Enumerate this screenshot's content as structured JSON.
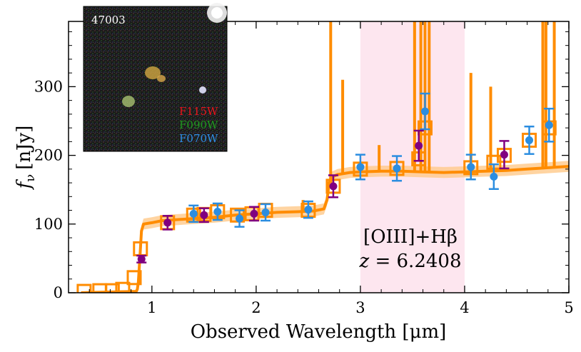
{
  "chart_data": {
    "type": "scatter",
    "xlabel": "Observed Wavelength [μm]",
    "ylabel_symbol": "f",
    "ylabel_subscript": "ν",
    "ylabel_unit": "[nJy]",
    "xlim": [
      0.2,
      5.0
    ],
    "ylim": [
      0,
      395
    ],
    "xticks": [
      1,
      2,
      3,
      4,
      5
    ],
    "yticks": [
      0,
      100,
      200,
      300
    ],
    "xticks_minor": [
      0.2,
      0.4,
      0.6,
      0.8,
      1.2,
      1.4,
      1.6,
      1.8,
      2.2,
      2.4,
      2.6,
      2.8,
      3.2,
      3.4,
      3.6,
      3.8,
      4.2,
      4.4,
      4.6,
      4.8
    ],
    "yticks_minor": [
      20,
      40,
      60,
      80,
      120,
      140,
      160,
      180,
      220,
      240,
      260,
      280,
      320,
      340,
      360,
      380
    ],
    "grid": false,
    "shaded_region": {
      "x": [
        3.0,
        4.0
      ],
      "color": "#fde6ef"
    },
    "annotation": {
      "line1": "[OIII]+Hβ",
      "line2_var": "z",
      "line2_eq": " = 6.2408"
    },
    "inset": {
      "id_label": "47003",
      "filters": [
        {
          "name": "F115W",
          "color": "#e8141c"
        },
        {
          "name": "F090W",
          "color": "#1f9a1f"
        },
        {
          "name": "F070W",
          "color": "#2f8fe8"
        }
      ]
    },
    "colors": {
      "model": "#ff8c00",
      "model_band": "#ffc98a",
      "blue_points": "#2b8de0",
      "purple_points": "#800080"
    },
    "model_spectrum": {
      "x": [
        0.32,
        0.85,
        0.86,
        0.87,
        0.88,
        0.89,
        0.9,
        0.92,
        1.0,
        1.1,
        1.2,
        1.4,
        1.6,
        1.8,
        2.0,
        2.2,
        2.4,
        2.55,
        2.65,
        2.68,
        2.7,
        2.72,
        2.78,
        2.9,
        3.0,
        3.2,
        3.4,
        3.6,
        3.8,
        4.0,
        4.2,
        4.4,
        4.6,
        4.8,
        5.0
      ],
      "y": [
        0,
        2,
        5,
        15,
        40,
        65,
        90,
        100,
        102,
        105,
        106,
        108,
        110,
        113,
        115,
        117,
        118,
        119,
        122,
        135,
        160,
        168,
        172,
        175,
        176,
        177,
        177,
        176,
        175,
        176,
        177,
        178,
        180,
        182,
        184
      ]
    },
    "emission_lines": [
      {
        "x": 2.715,
        "y": 395
      },
      {
        "x": 2.83,
        "y": 310
      },
      {
        "x": 3.18,
        "y": 215
      },
      {
        "x": 3.52,
        "y": 395
      },
      {
        "x": 3.58,
        "y": 395
      },
      {
        "x": 3.62,
        "y": 395
      },
      {
        "x": 3.66,
        "y": 395
      },
      {
        "x": 4.75,
        "y": 395
      },
      {
        "x": 4.78,
        "y": 395
      },
      {
        "x": 4.86,
        "y": 395
      },
      {
        "x": 4.25,
        "y": 300
      },
      {
        "x": 4.06,
        "y": 320
      },
      {
        "x": 2.45,
        "y": 135
      }
    ],
    "model_photometry": {
      "x": [
        0.35,
        0.5,
        0.62,
        0.72,
        0.83,
        0.89,
        1.15,
        1.4,
        1.5,
        1.63,
        1.82,
        1.96,
        2.09,
        2.5,
        2.74,
        3.0,
        3.35,
        3.56,
        3.62,
        4.06,
        4.28,
        4.38,
        4.62,
        4.81
      ],
      "y": [
        2,
        3,
        3,
        5,
        22,
        64,
        102,
        113,
        114,
        118,
        113,
        115,
        120,
        120,
        155,
        180,
        181,
        195,
        240,
        182,
        190,
        200,
        222,
        240
      ]
    },
    "blue_points": {
      "x": [
        1.4,
        1.63,
        1.84,
        2.09,
        2.5,
        3.0,
        3.35,
        3.62,
        4.06,
        4.28,
        4.62,
        4.81
      ],
      "y": [
        115,
        118,
        108,
        117,
        121,
        183,
        181,
        264,
        183,
        169,
        222,
        244
      ],
      "err": [
        12,
        12,
        12,
        12,
        12,
        18,
        18,
        26,
        18,
        18,
        20,
        24
      ]
    },
    "purple_points": {
      "x": [
        0.9,
        1.15,
        1.5,
        1.98,
        2.74,
        3.56,
        4.38
      ],
      "y": [
        49,
        102,
        113,
        115,
        155,
        214,
        201
      ],
      "err": [
        5,
        10,
        10,
        10,
        16,
        22,
        20
      ]
    }
  }
}
